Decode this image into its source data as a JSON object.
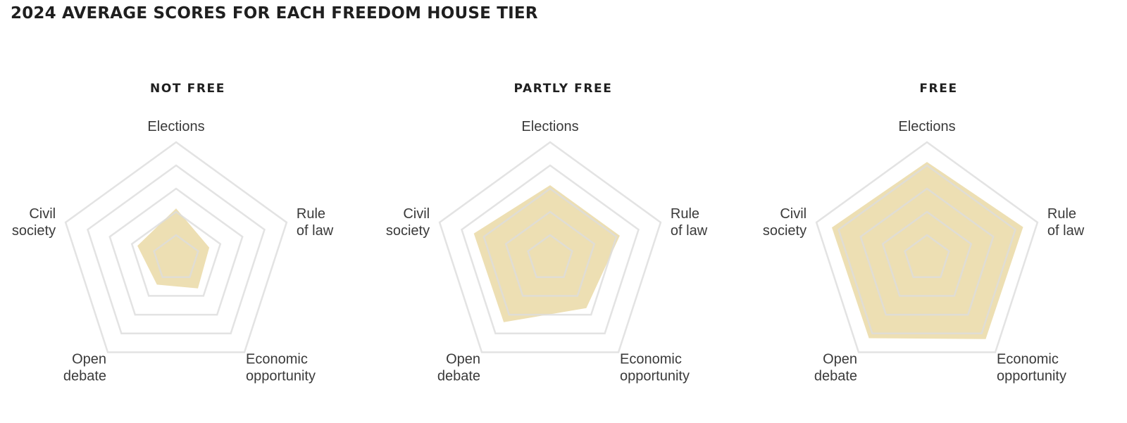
{
  "title": "2024 AVERAGE SCORES FOR EACH FREEDOM HOUSE TIER",
  "colors": {
    "fill": "#ead9a6",
    "grid": "#dcdcdc",
    "text": "#222222"
  },
  "chart_data": [
    {
      "type": "radar",
      "title": "NOT FREE",
      "axes": [
        "Elections",
        "Rule\nof law",
        "Economic\nopportunity",
        "Open\ndebate",
        "Civil\nsociety"
      ],
      "values": [
        0.43,
        0.3,
        0.32,
        0.28,
        0.35
      ],
      "range": [
        0,
        1
      ],
      "grid_rings": 5
    },
    {
      "type": "radar",
      "title": "PARTLY FREE",
      "axes": [
        "Elections",
        "Rule\nof law",
        "Economic\nopportunity",
        "Open\ndebate",
        "Civil\nsociety"
      ],
      "values": [
        0.63,
        0.63,
        0.53,
        0.68,
        0.69
      ],
      "range": [
        0,
        1
      ],
      "grid_rings": 5
    },
    {
      "type": "radar",
      "title": "FREE",
      "axes": [
        "Elections",
        "Rule\nof law",
        "Economic\nopportunity",
        "Open\ndebate",
        "Civil\nsociety"
      ],
      "values": [
        0.83,
        0.87,
        0.86,
        0.85,
        0.86
      ],
      "range": [
        0,
        1
      ],
      "grid_rings": 5
    }
  ]
}
